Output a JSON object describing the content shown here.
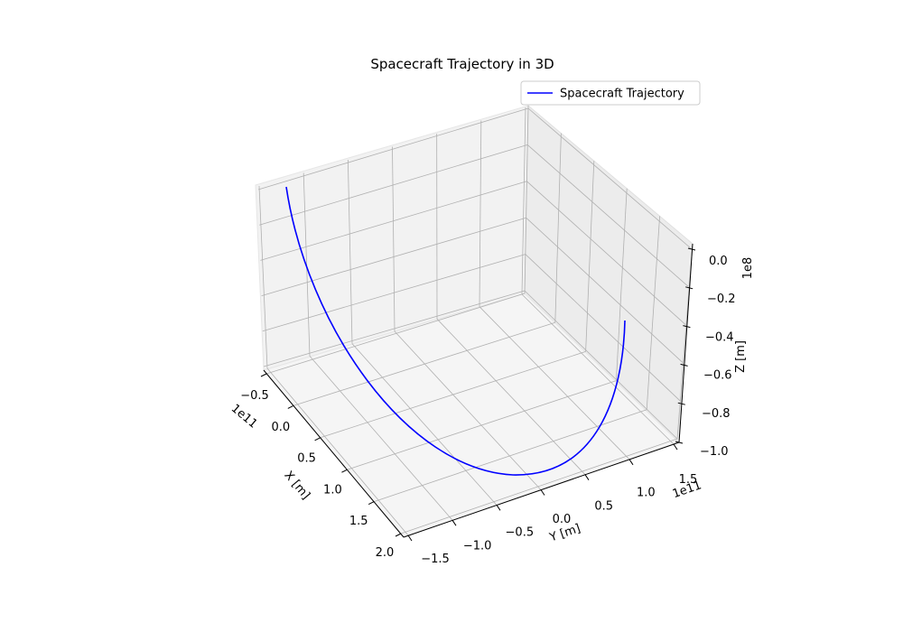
{
  "chart_data": {
    "type": "line",
    "title": "Spacecraft Trajectory in 3D",
    "xlabel": "X [m]",
    "ylabel": "Y [m]",
    "zlabel": "Z [m]",
    "x_offset_text": "1e11",
    "y_offset_text": "1e11",
    "z_offset_text": "1e8",
    "x_ticks": [
      "−0.5",
      "0.0",
      "0.5",
      "1.0",
      "1.5",
      "2.0"
    ],
    "y_ticks": [
      "−1.5",
      "−1.0",
      "−0.5",
      "0.0",
      "0.5",
      "1.0",
      "1.5"
    ],
    "z_ticks": [
      "0.0",
      "−0.2",
      "−0.4",
      "−0.6",
      "−0.8",
      "−1.0"
    ],
    "grid": true,
    "legend_position": "top-right",
    "series": [
      {
        "name": "Spacecraft Trajectory",
        "color": "#0000ff"
      }
    ]
  }
}
